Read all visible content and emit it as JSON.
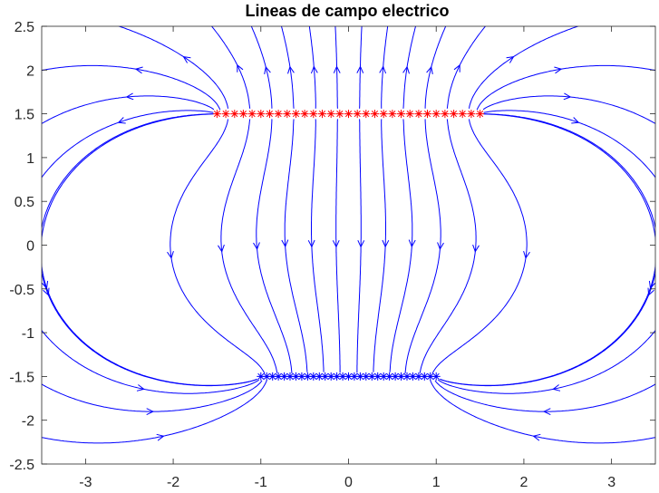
{
  "chart_data": {
    "type": "streamplot",
    "title": "Lineas de campo electrico",
    "xlabel": "",
    "ylabel": "",
    "xlim": [
      -3.5,
      3.5
    ],
    "ylim": [
      -2.5,
      2.5
    ],
    "xticks": [
      -3,
      -2,
      -1,
      0,
      1,
      2,
      3
    ],
    "xtick_labels": [
      "-3",
      "-2",
      "-1",
      "0",
      "1",
      "2",
      "3"
    ],
    "yticks": [
      2.5,
      2,
      1.5,
      1,
      0.5,
      0,
      -0.5,
      -1,
      -1.5,
      -2,
      -2.5
    ],
    "ytick_labels": [
      "2.5",
      "2",
      "1.5",
      "1",
      "0.5",
      "0",
      "-0.5",
      "-1",
      "-1.5",
      "-2",
      "-2.5"
    ],
    "grid": false,
    "charges": [
      {
        "sign": "positive",
        "color": "#ff0000",
        "marker": "*",
        "x_from": -1.5,
        "x_to": 1.5,
        "y": 1.5,
        "count": 31
      },
      {
        "sign": "negative",
        "color": "#0000ff",
        "marker": "*",
        "x_from": -1.0,
        "x_to": 1.0,
        "y": -1.5,
        "count": 31
      }
    ],
    "field_line_color": "#0000ff"
  }
}
